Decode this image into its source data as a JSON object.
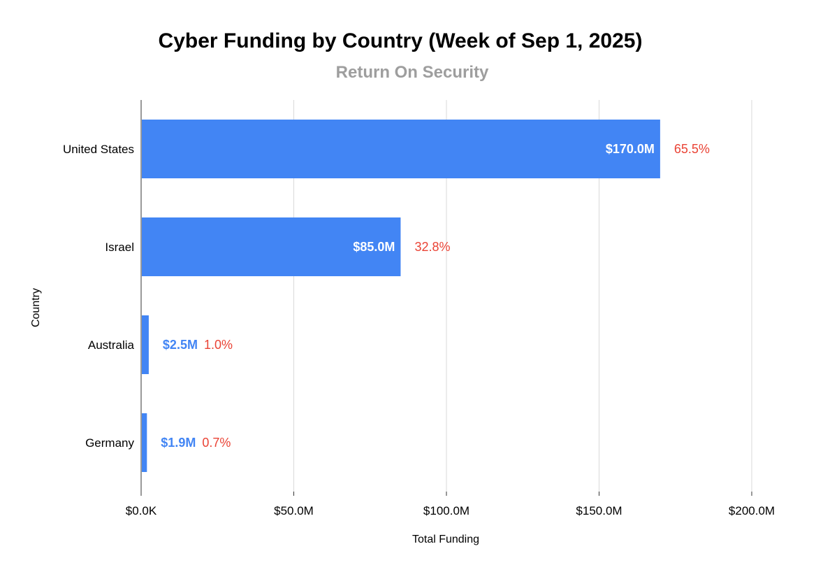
{
  "colors": {
    "bar": "#4285f4",
    "percent": "#ea4335",
    "subtitle": "#9e9e9e",
    "gridline": "#d9d9d9"
  },
  "chart_data": {
    "type": "bar",
    "orientation": "horizontal",
    "title": "Cyber Funding by Country (Week of Sep 1, 2025)",
    "subtitle": "Return On Security",
    "xlabel": "Total Funding",
    "ylabel": "Country",
    "xlim": [
      0,
      200000000
    ],
    "x_ticks": [
      {
        "value": 0,
        "label": "$0.0K"
      },
      {
        "value": 50000000,
        "label": "$50.0M"
      },
      {
        "value": 100000000,
        "label": "$100.0M"
      },
      {
        "value": 150000000,
        "label": "$150.0M"
      },
      {
        "value": 200000000,
        "label": "$200.0M"
      }
    ],
    "grid": "vertical",
    "categories": [
      "United States",
      "Israel",
      "Australia",
      "Germany"
    ],
    "values": [
      170000000,
      85000000,
      2500000,
      1900000
    ],
    "value_labels": [
      "$170.0M",
      "$85.0M",
      "$2.5M",
      "$1.9M"
    ],
    "percent_labels": [
      "65.5%",
      "32.8%",
      "1.0%",
      "0.7%"
    ]
  }
}
